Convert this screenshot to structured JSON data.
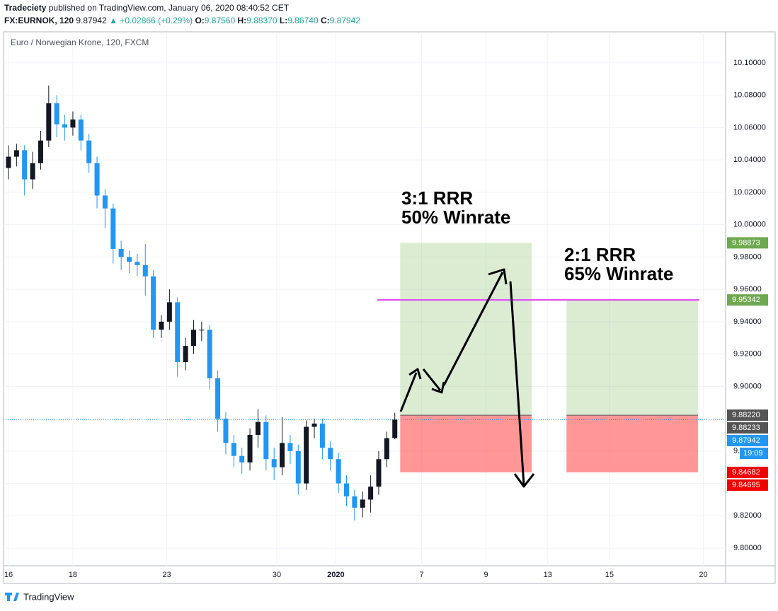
{
  "header": {
    "publisher": "Tradeciety",
    "published_text": "published on TradingView.com, January 06, 2020 08:40:52 CET",
    "symbol": "FX:EURNOK, 120",
    "last": "9.87942",
    "arrow": "▲",
    "change": "+0.02866 (+0.29%)",
    "o_label": "O:",
    "o_value": "9.87560",
    "h_label": "H:",
    "h_value": "9.88370",
    "l_label": "L:",
    "l_value": "9.86740",
    "c_label": "C:",
    "c_value": "9.87942"
  },
  "footer": {
    "brand": "TradingView"
  },
  "chart_data": {
    "type": "candlestick",
    "legend_text": "Euro / Norwegian Krone, 120, FXCM",
    "up_color": "#131722",
    "down_color": "#2196f3",
    "grid": true,
    "xlim": [
      -1.05,
      267.3
    ],
    "ylim": [
      9.7891,
      10.1192
    ],
    "xticks": [
      {
        "value": 0,
        "label": "16"
      },
      {
        "value": 24,
        "label": "18"
      },
      {
        "value": 59,
        "label": "23"
      },
      {
        "value": 100,
        "label": "30"
      },
      {
        "value": 122,
        "label": "2020"
      },
      {
        "value": 154,
        "label": "7"
      },
      {
        "value": 178,
        "label": "9"
      },
      {
        "value": 201,
        "label": "13"
      },
      {
        "value": 224,
        "label": "15"
      },
      {
        "value": 259,
        "label": "20"
      }
    ],
    "yticks": [
      {
        "value": 9.8,
        "label": "9.80000"
      },
      {
        "value": 9.82,
        "label": "9.82000"
      },
      {
        "value": 9.84,
        "label": "9.84000"
      },
      {
        "value": 9.86,
        "label": "9.86000"
      },
      {
        "value": 9.88,
        "label": "9.88000"
      },
      {
        "value": 9.9,
        "label": "9.90000"
      },
      {
        "value": 9.92,
        "label": "9.92000"
      },
      {
        "value": 9.94,
        "label": "9.94000"
      },
      {
        "value": 9.96,
        "label": "9.96000"
      },
      {
        "value": 9.98,
        "label": "9.98000"
      },
      {
        "value": 10.0,
        "label": "10.00000"
      },
      {
        "value": 10.02,
        "label": "10.02000"
      },
      {
        "value": 10.04,
        "label": "10.04000"
      },
      {
        "value": 10.06,
        "label": "10.06000"
      },
      {
        "value": 10.08,
        "label": "10.08000"
      },
      {
        "value": 10.1,
        "label": "10.10000"
      }
    ],
    "x": [
      0,
      3,
      6,
      9,
      12,
      15,
      18,
      21,
      24,
      27,
      30,
      33,
      36,
      39,
      42,
      45,
      48,
      51,
      54,
      57,
      60,
      63,
      66,
      69,
      72,
      75,
      78,
      81,
      84,
      87,
      90,
      93,
      96,
      99,
      102,
      105,
      108,
      111,
      114,
      117,
      120,
      123,
      126,
      129,
      132,
      135,
      138,
      141,
      144
    ],
    "open": [
      10.035,
      10.042,
      10.046,
      10.028,
      10.038,
      10.052,
      10.075,
      10.062,
      10.06,
      10.065,
      10.052,
      10.038,
      10.018,
      10.01,
      9.985,
      9.98,
      9.977,
      9.975,
      9.968,
      9.935,
      9.94,
      9.952,
      9.915,
      9.925,
      9.935,
      9.935,
      9.905,
      9.88,
      9.865,
      9.857,
      9.853,
      9.87,
      9.878,
      9.855,
      9.85,
      9.865,
      9.86,
      9.84,
      9.875,
      9.877,
      9.862,
      9.855,
      9.84,
      9.832,
      9.825,
      9.83,
      9.838,
      9.855,
      9.868
    ],
    "high": [
      10.049,
      10.05,
      10.049,
      10.045,
      10.058,
      10.086,
      10.08,
      10.068,
      10.07,
      10.068,
      10.056,
      10.042,
      10.022,
      10.013,
      9.99,
      9.984,
      9.982,
      9.988,
      9.972,
      9.944,
      9.96,
      9.955,
      9.93,
      9.941,
      9.94,
      9.938,
      9.91,
      9.884,
      9.87,
      9.862,
      9.874,
      9.886,
      9.882,
      9.862,
      9.881,
      9.87,
      9.864,
      9.879,
      9.88,
      9.88,
      9.866,
      9.859,
      9.845,
      9.836,
      9.835,
      9.845,
      9.86,
      9.872,
      9.8837
    ],
    "low": [
      10.028,
      10.036,
      10.018,
      10.022,
      10.034,
      10.048,
      10.054,
      10.052,
      10.055,
      10.046,
      10.032,
      10.01,
      9.998,
      9.976,
      9.972,
      9.97,
      9.968,
      9.956,
      9.93,
      9.93,
      9.935,
      9.906,
      9.91,
      9.92,
      9.928,
      9.898,
      9.872,
      9.858,
      9.85,
      9.846,
      9.848,
      9.862,
      9.848,
      9.842,
      9.845,
      9.852,
      9.833,
      9.836,
      9.868,
      9.855,
      9.848,
      9.834,
      9.826,
      9.817,
      9.819,
      9.822,
      9.833,
      9.85,
      9.8674
    ],
    "close": [
      10.042,
      10.046,
      10.028,
      10.038,
      10.052,
      10.075,
      10.062,
      10.06,
      10.065,
      10.052,
      10.038,
      10.018,
      10.01,
      9.985,
      9.98,
      9.977,
      9.975,
      9.968,
      9.935,
      9.94,
      9.952,
      9.915,
      9.925,
      9.935,
      9.935,
      9.905,
      9.88,
      9.865,
      9.857,
      9.853,
      9.87,
      9.878,
      9.855,
      9.85,
      9.865,
      9.86,
      9.84,
      9.875,
      9.877,
      9.862,
      9.855,
      9.84,
      9.832,
      9.825,
      9.83,
      9.838,
      9.855,
      9.868,
      9.87942
    ],
    "positions": [
      {
        "x_start": 146,
        "x_end": 195,
        "target": 9.98873,
        "entry": 9.8822,
        "stop": 9.84682
      },
      {
        "x_start": 208,
        "x_end": 257,
        "target": 9.95342,
        "entry": 9.8822,
        "stop": 9.84682
      }
    ],
    "hline": {
      "value": 9.95342,
      "x_start": 137.5,
      "x_end": 257.5,
      "color": "#e040fb"
    },
    "price_line": 9.87942,
    "price_labels": [
      {
        "value": 9.98873,
        "label": "9.98873",
        "color": "#6ea84f"
      },
      {
        "value": 9.95342,
        "label": "9.95342",
        "color": "#6ea84f"
      },
      {
        "value": 9.8822,
        "label": "9.88220",
        "color": "#555555"
      },
      {
        "value": 9.88233,
        "label": "9.88233",
        "color": "#555555"
      },
      {
        "value": 9.87942,
        "label": "9.87942",
        "color": "#2196f3"
      },
      {
        "value": 9.84682,
        "label": "9.84682",
        "color": "#f20000"
      },
      {
        "value": 9.84695,
        "label": "9.84695",
        "color": "#f20000"
      }
    ],
    "countdown": "19:09",
    "annotations": [
      {
        "line1": "3:1 RRR",
        "line2": "50% Winrate"
      },
      {
        "line1": "2:1 RRR",
        "line2": "65% Winrate"
      }
    ]
  }
}
